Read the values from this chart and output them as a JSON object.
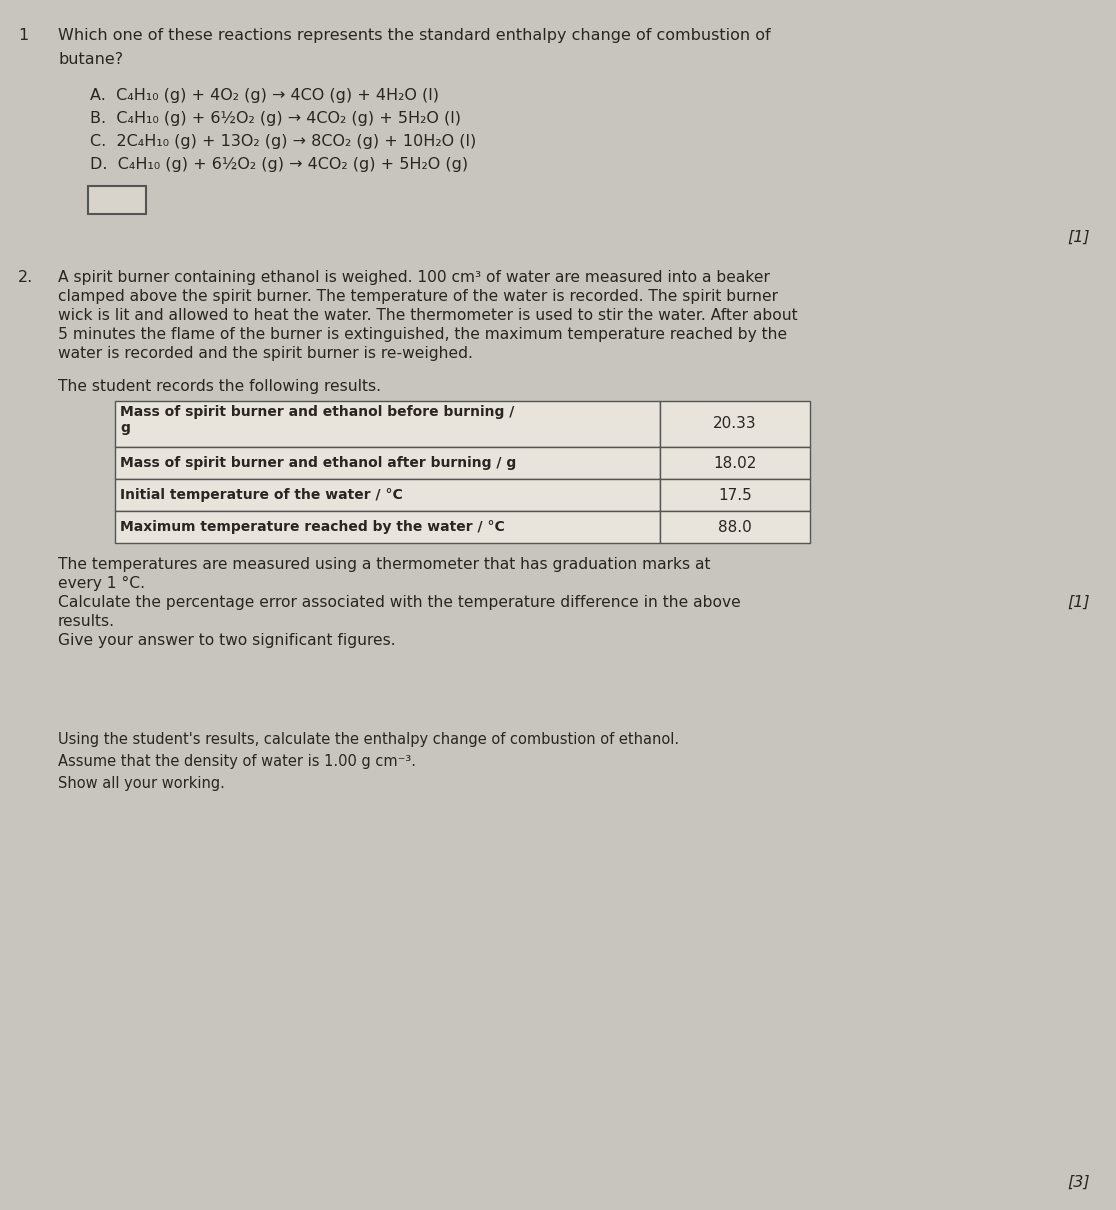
{
  "page_bg": "#c8c5be",
  "text_color": "#2a2520",
  "q1_number": "1",
  "q1_title_line1": "Which one of these reactions represents the standard enthalpy change of combustion of",
  "q1_title_line2": "butane?",
  "q1_options": [
    "A.  C₄H₁₀ (g) + 4O₂ (g) → 4CO (g) + 4H₂O (l)",
    "B.  C₄H₁₀ (g) + 6½O₂ (g) → 4CO₂ (g) + 5H₂O (l)",
    "C.  2C₄H₁₀ (g) + 13O₂ (g) → 8CO₂ (g) + 10H₂O (l)",
    "D.  C₄H₁₀ (g) + 6½O₂ (g) → 4CO₂ (g) + 5H₂O (g)"
  ],
  "q1_marks": "[1]",
  "q2_number": "2.",
  "q2_intro_lines": [
    "A spirit burner containing ethanol is weighed. 100 cm³ of water are measured into a beaker",
    "clamped above the spirit burner. The temperature of the water is recorded. The spirit burner",
    "wick is lit and allowed to heat the water. The thermometer is used to stir the water. After about",
    "5 minutes the flame of the burner is extinguished, the maximum temperature reached by the",
    "water is recorded and the spirit burner is re-weighed."
  ],
  "q2_table_intro": "The student records the following results.",
  "table_col1_labels": [
    "Mass of spirit burner and ethanol before burning /\ng",
    "Mass of spirit burner and ethanol after burning / g",
    "Initial temperature of the water / °C",
    "Maximum temperature reached by the water / °C"
  ],
  "table_col2_values": [
    "20.33",
    "18.02",
    "17.5",
    "88.0"
  ],
  "q2a_lines": [
    "The temperatures are measured using a thermometer that has graduation marks at",
    "every 1 °C.",
    "Calculate the percentage error associated with the temperature difference in the above",
    "results.",
    "Give your answer to two significant figures."
  ],
  "q2a_marks": "[1]",
  "q2b_lines": [
    "Using the student's results, calculate the enthalpy change of combustion of ethanol.",
    "Assume that the density of water is 1.00 g cm⁻³.",
    "Show all your working."
  ],
  "q2b_marks": "[3]",
  "table_bg": "#e8e4dc",
  "table_border": "#555555",
  "answer_box_bg": "#d8d4cc",
  "answer_box_border": "#555555"
}
